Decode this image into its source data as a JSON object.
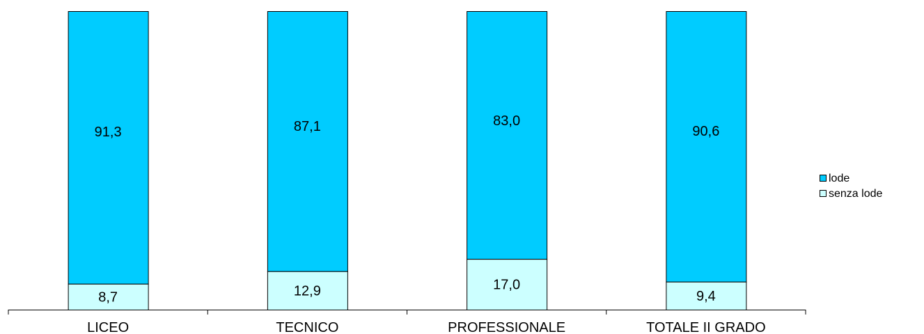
{
  "chart_data": {
    "type": "bar",
    "stacked": true,
    "categories": [
      "LICEO",
      "TECNICO",
      "PROFESSIONALE",
      "TOTALE II GRADO"
    ],
    "series": [
      {
        "name": "senza lode",
        "color": "#CCFFFF",
        "values": [
          8.7,
          12.9,
          17.0,
          9.4
        ]
      },
      {
        "name": "lode",
        "color": "#00CCFF",
        "values": [
          91.3,
          87.1,
          83.0,
          90.6
        ]
      }
    ],
    "data_labels": {
      "senza lode": [
        "8,7",
        "12,9",
        "17,0",
        "9,4"
      ],
      "lode": [
        "91,3",
        "87,1",
        "83,0",
        "90,6"
      ]
    },
    "legend": {
      "position": "right",
      "entries": [
        "lode",
        "senza lode"
      ]
    },
    "ylim": [
      0,
      100
    ],
    "grid": false,
    "title": "",
    "xlabel": "",
    "ylabel": ""
  }
}
